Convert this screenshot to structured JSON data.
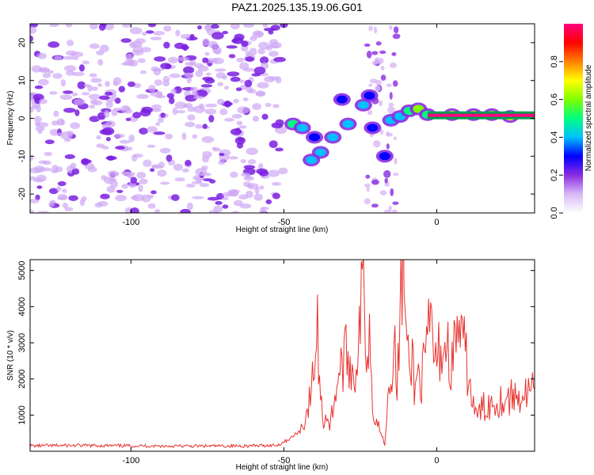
{
  "title": "PAZ1.2025.135.19.06.G01",
  "chart_data": [
    {
      "type": "heatmap",
      "xlabel": "Height of straight line (km)",
      "ylabel": "Frequency (Hz)",
      "xlim": [
        -133,
        32
      ],
      "ylim": [
        -25,
        25
      ],
      "xticks": [
        -100,
        -50,
        0
      ],
      "yticks": [
        20,
        10,
        0,
        -10,
        -20
      ],
      "colorbar": {
        "label": "Normalized spectral amplitude",
        "range": [
          0,
          1
        ],
        "ticks": [
          0.0,
          0.2,
          0.4,
          0.6,
          0.8
        ],
        "colors": [
          "#ffffff",
          "#d9b8f5",
          "#8a2be2",
          "#0000ff",
          "#00c0ff",
          "#00ff80",
          "#80ff00",
          "#ffff00",
          "#ff8000",
          "#ff0000",
          "#ff0080"
        ]
      },
      "blobs": [
        {
          "x": -47,
          "y": -1.5,
          "v": 0.45
        },
        {
          "x": -44,
          "y": -2.5,
          "v": 0.4
        },
        {
          "x": -40,
          "y": -5,
          "v": 0.3
        },
        {
          "x": -38,
          "y": -9,
          "v": 0.35
        },
        {
          "x": -41,
          "y": -11,
          "v": 0.4
        },
        {
          "x": -34,
          "y": -5,
          "v": 0.35
        },
        {
          "x": -31,
          "y": 5,
          "v": 0.3
        },
        {
          "x": -29,
          "y": -1.5,
          "v": 0.35
        },
        {
          "x": -24,
          "y": 3.5,
          "v": 0.4
        },
        {
          "x": -22,
          "y": 6,
          "v": 0.3
        },
        {
          "x": -21,
          "y": -2.5,
          "v": 0.3
        },
        {
          "x": -17,
          "y": -10,
          "v": 0.25
        },
        {
          "x": -15,
          "y": -0.5,
          "v": 0.4
        },
        {
          "x": -12,
          "y": 0.5,
          "v": 0.35
        },
        {
          "x": -9,
          "y": 2,
          "v": 0.45
        },
        {
          "x": -6,
          "y": 2.5,
          "v": 0.55
        },
        {
          "x": -3,
          "y": 1,
          "v": 0.5
        },
        {
          "x": 5,
          "y": 1,
          "v": 0.7
        },
        {
          "x": 12,
          "y": 1,
          "v": 0.7
        },
        {
          "x": 18,
          "y": 1,
          "v": 0.6
        },
        {
          "x": 24,
          "y": 0.5,
          "v": 0.7
        }
      ],
      "line_feature": {
        "x": [
          -3,
          32
        ],
        "y": 0.8,
        "v": 0.95
      }
    },
    {
      "type": "line",
      "xlabel": "Height of straight line (km)",
      "ylabel": "SNR (10 * v/v)",
      "xlim": [
        -133,
        32
      ],
      "ylim": [
        0,
        5300
      ],
      "xticks": [
        -100,
        -50,
        0
      ],
      "yticks": [
        1000,
        2000,
        3000,
        4000,
        5000
      ],
      "color": "#e8322e",
      "x": [
        -133,
        -120,
        -100,
        -80,
        -60,
        -52,
        -48,
        -45,
        -43,
        -41,
        -40,
        -39,
        -38,
        -37,
        -36,
        -35,
        -33,
        -31,
        -29,
        -27,
        -25,
        -24,
        -23,
        -22,
        -21,
        -20,
        -19,
        -17,
        -16,
        -15,
        -14,
        -13,
        -12,
        -11,
        -10,
        -9,
        -8,
        -7,
        -6,
        -5,
        -4,
        -3,
        -2,
        -1,
        0,
        1,
        2,
        3,
        4,
        5,
        6,
        7,
        8,
        9,
        10,
        11,
        12,
        13,
        14,
        15,
        17,
        20,
        25,
        30,
        32
      ],
      "y": [
        150,
        160,
        150,
        140,
        150,
        170,
        350,
        550,
        900,
        1600,
        2500,
        3300,
        1500,
        800,
        1100,
        600,
        1800,
        2400,
        2700,
        2000,
        3500,
        4900,
        2800,
        3300,
        1500,
        900,
        700,
        200,
        1700,
        2000,
        3400,
        1400,
        4000,
        5300,
        3200,
        2000,
        2600,
        1600,
        2300,
        1900,
        2400,
        2900,
        3600,
        2800,
        2300,
        2900,
        2700,
        3100,
        2600,
        2400,
        3000,
        3600,
        2900,
        2800,
        2300,
        1700,
        1300,
        900,
        1100,
        1200,
        1300,
        1400,
        1500,
        1600,
        1700
      ]
    }
  ]
}
